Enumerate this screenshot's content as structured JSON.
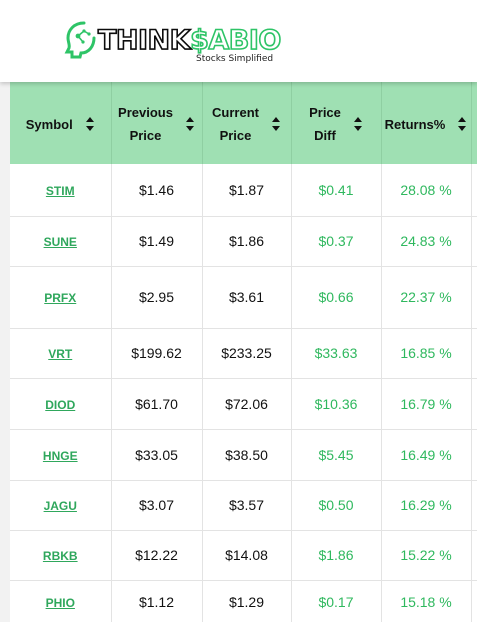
{
  "brand": {
    "name_part1": "THINK",
    "name_part2": "$ABIO",
    "tagline": "Stocks Simplified",
    "accent_color": "#2ec467",
    "header_color": "#9fe0b3"
  },
  "table": {
    "columns": [
      {
        "line1": "Symbol",
        "line2": ""
      },
      {
        "line1": "Previous",
        "line2": "Price"
      },
      {
        "line1": "Current",
        "line2": "Price"
      },
      {
        "line1": "Price",
        "line2": "Diff"
      },
      {
        "line1": "Returns%",
        "line2": ""
      }
    ],
    "sort_icon": "sort-up-down-icon",
    "rows": [
      {
        "symbol": "STIM",
        "prev": "$1.46",
        "curr": "$1.87",
        "diff": "$0.41",
        "ret": "28.08 %"
      },
      {
        "symbol": "SUNE",
        "prev": "$1.49",
        "curr": "$1.86",
        "diff": "$0.37",
        "ret": "24.83 %"
      },
      {
        "symbol": "PRFX",
        "prev": "$2.95",
        "curr": "$3.61",
        "diff": "$0.66",
        "ret": "22.37 %"
      },
      {
        "symbol": "VRT",
        "prev": "$199.62",
        "curr": "$233.25",
        "diff": "$33.63",
        "ret": "16.85 %"
      },
      {
        "symbol": "DIOD",
        "prev": "$61.70",
        "curr": "$72.06",
        "diff": "$10.36",
        "ret": "16.79 %"
      },
      {
        "symbol": "HNGE",
        "prev": "$33.05",
        "curr": "$38.50",
        "diff": "$5.45",
        "ret": "16.49 %"
      },
      {
        "symbol": "JAGU",
        "prev": "$3.07",
        "curr": "$3.57",
        "diff": "$0.50",
        "ret": "16.29 %"
      },
      {
        "symbol": "RBKB",
        "prev": "$12.22",
        "curr": "$14.08",
        "diff": "$1.86",
        "ret": "15.22 %"
      },
      {
        "symbol": "PHIO",
        "prev": "$1.12",
        "curr": "$1.29",
        "diff": "$0.17",
        "ret": "15.18 %"
      }
    ]
  }
}
